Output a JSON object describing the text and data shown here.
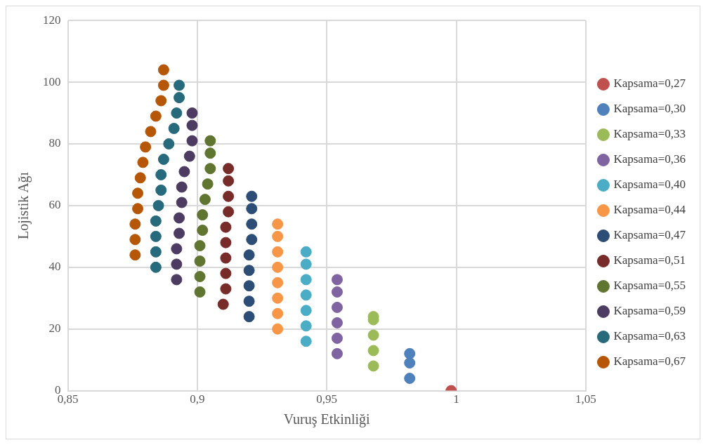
{
  "chart_data": {
    "type": "scatter",
    "xlabel": "Vuruş Etkinliği",
    "ylabel": "Lojistik Ağı",
    "xlim": [
      0.85,
      1.05
    ],
    "xticks": [
      {
        "value": 0.85,
        "label": "0,85"
      },
      {
        "value": 0.9,
        "label": "0,9"
      },
      {
        "value": 0.95,
        "label": "0,95"
      },
      1,
      {
        "value": 1.05,
        "label": "1,05"
      }
    ],
    "ylim": [
      0,
      120
    ],
    "yticks": [
      0,
      20,
      40,
      60,
      80,
      100,
      120
    ],
    "grid": true,
    "legend": "right",
    "marker": "circle",
    "series": [
      {
        "name": "Kapsama=0,27",
        "color": "#c0504d",
        "x": [
          0.998
        ],
        "values": [
          0
        ]
      },
      {
        "name": "Kapsama=0,30",
        "color": "#4f81bd",
        "x": [
          0.982,
          0.982,
          0.982
        ],
        "values": [
          12,
          9,
          4
        ]
      },
      {
        "name": "Kapsama=0,33",
        "color": "#9bbb59",
        "x": [
          0.968,
          0.968,
          0.968,
          0.968,
          0.968
        ],
        "values": [
          24,
          23,
          18,
          13,
          8
        ]
      },
      {
        "name": "Kapsama=0,36",
        "color": "#8064a2",
        "x": [
          0.954,
          0.954,
          0.954,
          0.954,
          0.954,
          0.954
        ],
        "values": [
          36,
          32,
          27,
          22,
          17,
          12
        ]
      },
      {
        "name": "Kapsama=0,40",
        "color": "#4bacc6",
        "x": [
          0.942,
          0.942,
          0.942,
          0.942,
          0.942,
          0.942,
          0.942
        ],
        "values": [
          45,
          41,
          36,
          31,
          26,
          21,
          16
        ]
      },
      {
        "name": "Kapsama=0,44",
        "color": "#f79646",
        "x": [
          0.931,
          0.931,
          0.931,
          0.931,
          0.931,
          0.931,
          0.931,
          0.931
        ],
        "values": [
          54,
          50,
          45,
          40,
          35,
          30,
          25,
          20
        ]
      },
      {
        "name": "Kapsama=0,47",
        "color": "#2c4d75",
        "x": [
          0.921,
          0.921,
          0.921,
          0.921,
          0.92,
          0.92,
          0.92,
          0.92,
          0.92
        ],
        "values": [
          63,
          59,
          54,
          49,
          44,
          39,
          34,
          29,
          24
        ]
      },
      {
        "name": "Kapsama=0,51",
        "color": "#772c2a",
        "x": [
          0.912,
          0.912,
          0.912,
          0.912,
          0.911,
          0.911,
          0.911,
          0.911,
          0.911,
          0.91
        ],
        "values": [
          72,
          68,
          63,
          58,
          53,
          48,
          43,
          38,
          33,
          28
        ]
      },
      {
        "name": "Kapsama=0,55",
        "color": "#5f7530",
        "x": [
          0.905,
          0.905,
          0.905,
          0.904,
          0.903,
          0.902,
          0.902,
          0.901,
          0.901,
          0.901,
          0.901
        ],
        "values": [
          81,
          77,
          72,
          67,
          62,
          57,
          52,
          47,
          42,
          37,
          32
        ]
      },
      {
        "name": "Kapsama=0,59",
        "color": "#4d3b62",
        "x": [
          0.898,
          0.898,
          0.898,
          0.897,
          0.895,
          0.894,
          0.894,
          0.893,
          0.893,
          0.892,
          0.892,
          0.892
        ],
        "values": [
          90,
          86,
          81,
          76,
          71,
          66,
          61,
          56,
          51,
          46,
          41,
          36
        ]
      },
      {
        "name": "Kapsama=0,63",
        "color": "#276a7c",
        "x": [
          0.893,
          0.893,
          0.892,
          0.891,
          0.889,
          0.887,
          0.886,
          0.886,
          0.885,
          0.884,
          0.884,
          0.884,
          0.884
        ],
        "values": [
          99,
          95,
          90,
          85,
          80,
          75,
          70,
          65,
          60,
          55,
          50,
          45,
          40
        ]
      },
      {
        "name": "Kapsama=0,67",
        "color": "#b65708",
        "x": [
          0.887,
          0.887,
          0.886,
          0.884,
          0.882,
          0.88,
          0.879,
          0.878,
          0.877,
          0.877,
          0.876,
          0.876,
          0.876
        ],
        "values": [
          104,
          99,
          94,
          89,
          84,
          79,
          74,
          69,
          64,
          59,
          54,
          49,
          44
        ]
      }
    ]
  }
}
